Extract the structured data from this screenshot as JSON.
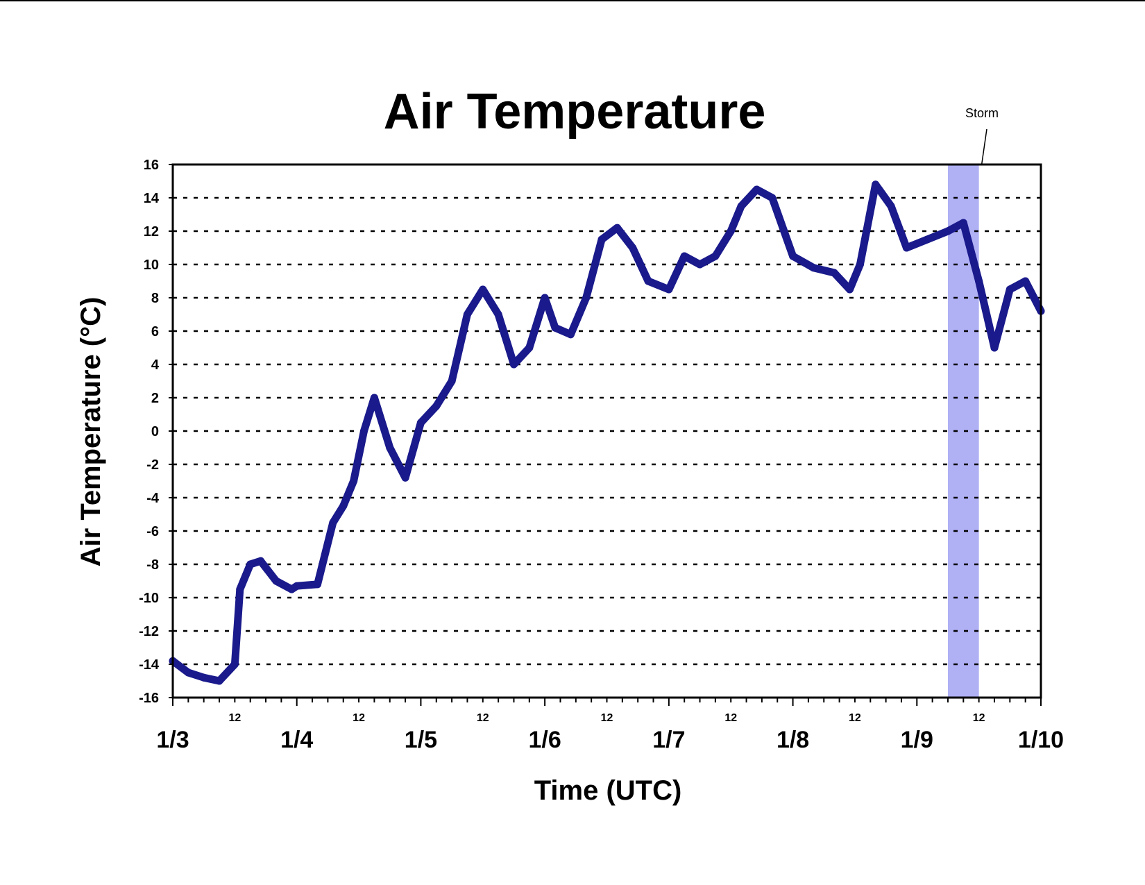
{
  "chart_data": {
    "type": "line",
    "title": "Air Temperature",
    "xlabel": "Time (UTC)",
    "ylabel": "Air Temperature (°C)",
    "ylim": [
      -16,
      16
    ],
    "yticks": [
      "16",
      "14",
      "12",
      "10",
      "8",
      "6",
      "4",
      "2",
      "0",
      "-2",
      "-4",
      "-6",
      "-8",
      "-10",
      "-12",
      "-14",
      "-16"
    ],
    "xlim_days": [
      0,
      7
    ],
    "x_major_labels": [
      "1/3",
      "1/4",
      "1/5",
      "1/6",
      "1/7",
      "1/8",
      "1/9",
      "1/10"
    ],
    "x_minor_label": "12",
    "grid": "horizontal dashed",
    "series_color": "#1a1a8c",
    "annotation": {
      "text": "Storm",
      "shade_color": "#b0b0f5",
      "x_start": "1/9 06:00",
      "x_end": "1/9 12:00"
    },
    "series": [
      {
        "x": [
          "1/3 00:00",
          "1/3 03:00",
          "1/3 06:00",
          "1/3 09:00",
          "1/3 12:00",
          "1/3 13:00",
          "1/3 15:00",
          "1/3 17:00",
          "1/3 20:00",
          "1/3 23:00",
          "1/4 00:00",
          "1/4 04:00",
          "1/4 07:00",
          "1/4 09:00",
          "1/4 11:00",
          "1/4 13:00",
          "1/4 15:00",
          "1/4 18:00",
          "1/4 21:00",
          "1/5 00:00",
          "1/5 03:00",
          "1/5 06:00",
          "1/5 09:00",
          "1/5 12:00",
          "1/5 15:00",
          "1/5 18:00",
          "1/5 21:00",
          "1/6 00:00",
          "1/6 02:00",
          "1/6 05:00",
          "1/6 08:00",
          "1/6 11:00",
          "1/6 14:00",
          "1/6 17:00",
          "1/6 20:00",
          "1/7 00:00",
          "1/7 03:00",
          "1/7 06:00",
          "1/7 09:00",
          "1/7 12:00",
          "1/7 14:00",
          "1/7 17:00",
          "1/7 20:00",
          "1/8 00:00",
          "1/8 04:00",
          "1/8 08:00",
          "1/8 11:00",
          "1/8 13:00",
          "1/8 16:00",
          "1/8 19:00",
          "1/8 22:00",
          "1/9 02:00",
          "1/9 06:00",
          "1/9 09:00",
          "1/9 12:00",
          "1/9 15:00",
          "1/9 18:00",
          "1/9 21:00",
          "1/10 00:00"
        ],
        "y": [
          -13.8,
          -14.5,
          -14.8,
          -15.0,
          -14.0,
          -9.5,
          -8.0,
          -7.8,
          -9.0,
          -9.5,
          -9.3,
          -9.2,
          -5.5,
          -4.5,
          -3.0,
          0.0,
          2.0,
          -1.0,
          -2.8,
          0.5,
          1.5,
          3.0,
          7.0,
          8.5,
          7.0,
          4.0,
          5.0,
          8.0,
          6.2,
          5.8,
          8.0,
          11.5,
          12.2,
          11.0,
          9.0,
          8.5,
          10.5,
          10.0,
          10.5,
          12.0,
          13.5,
          14.5,
          14.0,
          10.5,
          9.8,
          9.5,
          8.5,
          10.0,
          14.8,
          13.5,
          11.0,
          11.5,
          12.0,
          12.5,
          9.0,
          5.0,
          8.5,
          9.0,
          7.2
        ]
      }
    ]
  }
}
